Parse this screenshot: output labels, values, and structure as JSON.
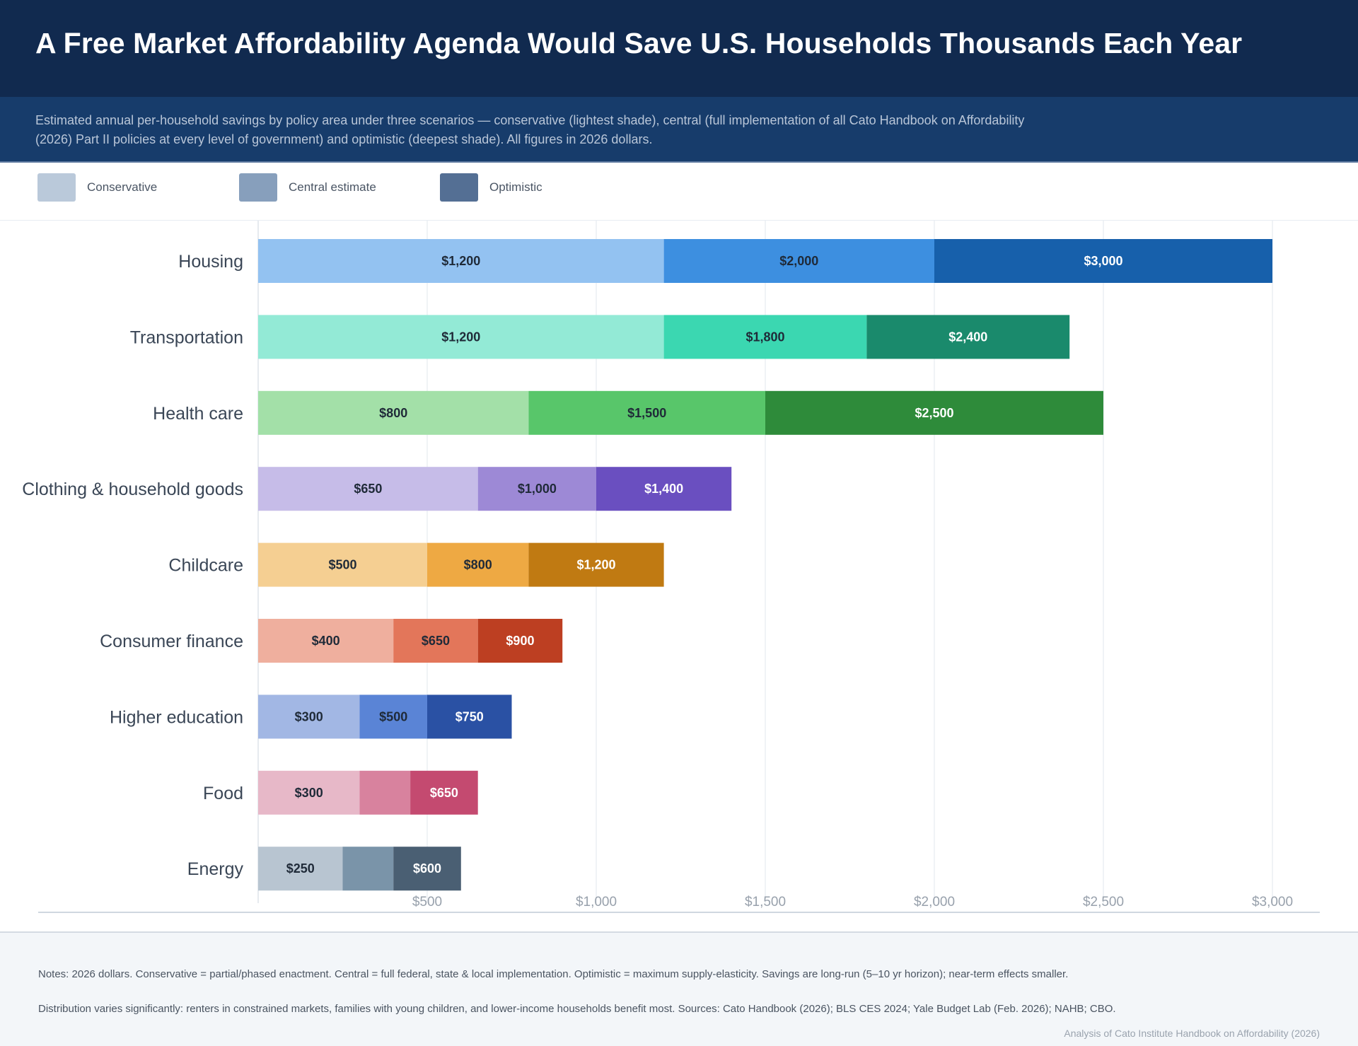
{
  "header": {
    "title": "A Free Market Affordability Agenda Would Save U.S. Households Thousands Each Year",
    "subtitle": "Estimated annual per-household savings by policy area under three scenarios — conservative (lightest shade), central (full implementation of all Cato Handbook on Affordability (2026) Part II policies at every level of government) and optimistic (deepest shade). All figures in 2026 dollars."
  },
  "legend": {
    "items": [
      {
        "label": "Conservative",
        "color": "#bac9da"
      },
      {
        "label": "Central estimate",
        "color": "#879fbc"
      },
      {
        "label": "Optimistic",
        "color": "#546f94"
      }
    ]
  },
  "chart_data": {
    "type": "bar",
    "orientation": "horizontal",
    "stacking": "overlapping cumulative (each scenario bar drawn from 0 to its total; deeper shades extend beyond lighter ones)",
    "title": "A Free Market Affordability Agenda Would Save U.S. Households Thousands Each Year",
    "xlabel": "",
    "ylabel": "",
    "xlim": [
      0,
      3000
    ],
    "x_ticks": [
      500,
      1000,
      1500,
      2000,
      2500,
      3000
    ],
    "x_tick_labels": [
      "$500",
      "$1,000",
      "$1,500",
      "$2,000",
      "$2,500",
      "$3,000"
    ],
    "grid": "vertical",
    "legend_position": "top-left",
    "categories": [
      "Housing",
      "Transportation",
      "Health care",
      "Clothing & household goods",
      "Childcare",
      "Consumer finance",
      "Higher education",
      "Food",
      "Energy"
    ],
    "series": [
      {
        "name": "Conservative",
        "values": [
          1200,
          1200,
          800,
          650,
          500,
          400,
          300,
          300,
          250
        ]
      },
      {
        "name": "Central estimate",
        "values": [
          2000,
          1800,
          1500,
          1000,
          800,
          650,
          500,
          450,
          400
        ]
      },
      {
        "name": "Optimistic",
        "values": [
          3000,
          2400,
          2500,
          1400,
          1200,
          900,
          750,
          650,
          600
        ]
      }
    ],
    "data_labels": [
      [
        "$1,200",
        "$2,000",
        "$3,000"
      ],
      [
        "$1,200",
        "$1,800",
        "$2,400"
      ],
      [
        "$800",
        "$1,500",
        "$2,500"
      ],
      [
        "$650",
        "$1,000",
        "$1,400"
      ],
      [
        "$500",
        "$800",
        "$1,200"
      ],
      [
        "$400",
        "$650",
        "$900"
      ],
      [
        "$300",
        "$500",
        "$750"
      ],
      [
        "$300",
        "",
        "$650"
      ],
      [
        "$250",
        "",
        "$600"
      ]
    ],
    "colors": [
      [
        "#93c2f1",
        "#3d8fe0",
        "#1760ab"
      ],
      [
        "#93ead6",
        "#3bd7b1",
        "#1a8a6c"
      ],
      [
        "#a3e0a8",
        "#58c66a",
        "#2e8b3a"
      ],
      [
        "#c6bce8",
        "#9d89d6",
        "#6a4fc0"
      ],
      [
        "#f5cf92",
        "#eea943",
        "#c07a12"
      ],
      [
        "#efaf9e",
        "#e3765a",
        "#bd3f22"
      ],
      [
        "#a2b7e4",
        "#5a84d6",
        "#2a51a4"
      ],
      [
        "#e7b8c8",
        "#d8829e",
        "#c44a70"
      ],
      [
        "#b8c5d1",
        "#7a94a9",
        "#4a5f73"
      ]
    ],
    "label_text_colors": [
      "#1f2a38",
      "#1f2a38",
      "#ffffff"
    ]
  },
  "footer": {
    "note_1": "Notes: 2026 dollars. Conservative = partial/phased enactment. Central = full federal, state & local implementation. Optimistic = maximum supply-elasticity. Savings are long-run (5–10 yr horizon); near-term effects smaller.",
    "note_2": "Distribution varies significantly: renters in constrained markets, families with young children, and lower-income households benefit most. Sources: Cato Handbook (2026); BLS CES 2024; Yale Budget Lab (Feb. 2026); NAHB; CBO.",
    "credit": "Analysis of Cato Institute Handbook on Affordability (2026)"
  }
}
